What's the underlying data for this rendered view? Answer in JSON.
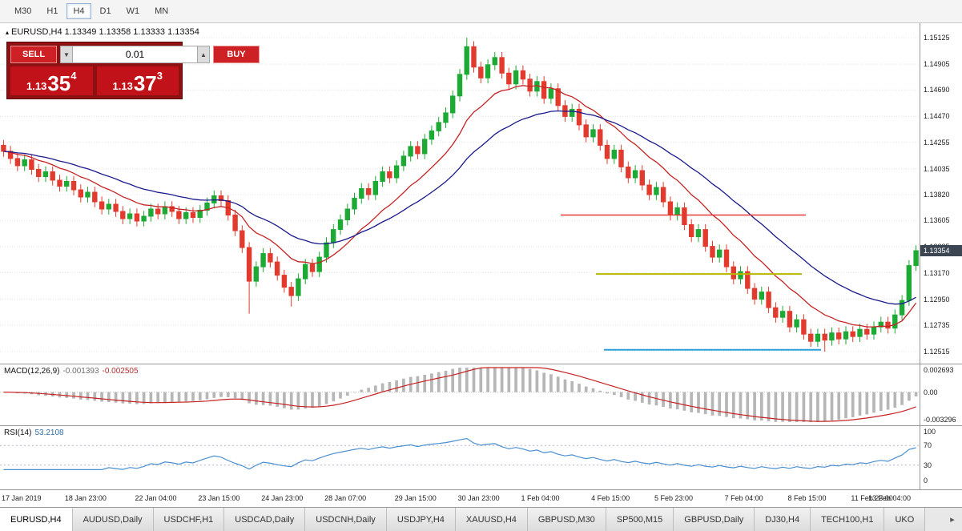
{
  "toolbar": {
    "timeframes": [
      "M30",
      "H1",
      "H4",
      "D1",
      "W1",
      "MN"
    ],
    "active_timeframe": "H4"
  },
  "chart": {
    "marker": "▴",
    "symbol_line": "EURUSD,H4  1.13349 1.13358 1.13333 1.13354"
  },
  "trade_widget": {
    "sell_label": "SELL",
    "buy_label": "BUY",
    "volume": "0.01",
    "volume_down_icon": "▼",
    "volume_up_icon": "▲",
    "sell_price": {
      "prefix": "1.13",
      "big": "35",
      "sup": "4"
    },
    "buy_price": {
      "prefix": "1.13",
      "big": "37",
      "sup": "3"
    }
  },
  "price_axis": {
    "labels": [
      "1.15125",
      "1.14905",
      "1.14690",
      "1.14470",
      "1.14255",
      "1.14035",
      "1.13820",
      "1.13605",
      "1.13385",
      "1.13170",
      "1.12950",
      "1.12735",
      "1.12515"
    ],
    "current_price": "1.13354",
    "scale_min": 1.12415,
    "scale_max": 1.15245
  },
  "chart_data": {
    "type": "candlestick",
    "symbol": "EURUSD",
    "timeframe": "H4",
    "ohlc_display": {
      "open": "1.13349",
      "high": "1.13358",
      "low": "1.13333",
      "close": "1.13354"
    },
    "first_open": 1.1423,
    "default_wick": 0.00045,
    "candle_up": "#1daa34",
    "candle_down": "#e23b2e",
    "closes": [
      1.1418,
      1.1412,
      1.1406,
      1.1411,
      1.1403,
      1.1397,
      1.1401,
      1.1394,
      1.1389,
      1.1393,
      1.1386,
      1.138,
      1.1384,
      1.1376,
      1.137,
      1.1374,
      1.1368,
      1.1362,
      1.1366,
      1.136,
      1.1364,
      1.137,
      1.1366,
      1.1372,
      1.1368,
      1.1362,
      1.1367,
      1.1363,
      1.1369,
      1.1375,
      1.1381,
      1.1377,
      1.1365,
      1.1352,
      1.1338,
      1.131,
      1.1322,
      1.1333,
      1.1326,
      1.1315,
      1.1305,
      1.1298,
      1.1312,
      1.1324,
      1.1318,
      1.133,
      1.1342,
      1.1353,
      1.1361,
      1.137,
      1.1379,
      1.1387,
      1.1382,
      1.1393,
      1.1401,
      1.1396,
      1.1406,
      1.1414,
      1.1422,
      1.1416,
      1.1428,
      1.1435,
      1.1442,
      1.145,
      1.1464,
      1.1482,
      1.1505,
      1.1488,
      1.1479,
      1.149,
      1.1496,
      1.1483,
      1.1474,
      1.1485,
      1.1478,
      1.1468,
      1.1476,
      1.1462,
      1.147,
      1.1456,
      1.1447,
      1.1453,
      1.144,
      1.143,
      1.1436,
      1.1423,
      1.1412,
      1.1419,
      1.1405,
      1.1396,
      1.1402,
      1.139,
      1.1382,
      1.1388,
      1.1376,
      1.1365,
      1.1371,
      1.1357,
      1.1347,
      1.1353,
      1.1339,
      1.133,
      1.1336,
      1.1322,
      1.1312,
      1.1318,
      1.1304,
      1.1295,
      1.1301,
      1.1288,
      1.128,
      1.1285,
      1.1272,
      1.1278,
      1.1266,
      1.126,
      1.1266,
      1.1261,
      1.1267,
      1.1262,
      1.1268,
      1.1264,
      1.127,
      1.1266,
      1.1272,
      1.1276,
      1.1271,
      1.1282,
      1.1294,
      1.1323,
      1.13354
    ],
    "wick_overrides": {
      "35": {
        "low": 1.1283
      },
      "41": {
        "low": 1.1289
      },
      "66": {
        "high": 1.15125
      },
      "117": {
        "low": 1.12515
      }
    },
    "overlays": {
      "ma_fast": {
        "type": "EMA",
        "period": 12,
        "color": "#c62222"
      },
      "ma_slow": {
        "type": "EMA",
        "period": 26,
        "color": "#1a1a8c"
      }
    },
    "hlines": [
      {
        "price": 1.1365,
        "from": 0.61,
        "to": 0.876,
        "color": "#e53935",
        "width": 1.4
      },
      {
        "price": 1.1316,
        "from": 0.648,
        "to": 0.872,
        "color": "#b5b800",
        "width": 2
      },
      {
        "price": 1.1253,
        "from": 0.657,
        "to": 0.893,
        "color": "#2a9fd8",
        "width": 2
      }
    ],
    "time_labels": [
      "17 Jan 2019",
      "18 Jan 23:00",
      "22 Jan 04:00",
      "23 Jan 15:00",
      "24 Jan 23:00",
      "28 Jan 07:00",
      "29 Jan 15:00",
      "30 Jan 23:00",
      "1 Feb 04:00",
      "4 Feb 15:00",
      "5 Feb 23:00",
      "7 Feb 04:00",
      "8 Feb 15:00",
      "11 Feb 23:00",
      "13 Feb 04:00"
    ],
    "time_label_indices": [
      0,
      9,
      19,
      28,
      37,
      46,
      56,
      65,
      74,
      84,
      93,
      103,
      112,
      121,
      130
    ]
  },
  "macd": {
    "label": "MACD(12,26,9)",
    "value_main": "-0.001393",
    "value_signal": "-0.002505",
    "axis_max": "0.002693",
    "axis_zero": "0.00",
    "axis_min": "-0.003296",
    "axis_max_val": 0.002693,
    "axis_min_val": -0.003296,
    "params": {
      "fast": 12,
      "slow": 26,
      "signal": 9
    },
    "histogram_color": "#b6b6b6",
    "signal_color": "#c62222"
  },
  "rsi": {
    "label": "RSI(14)",
    "value": "53.2108",
    "period": 14,
    "axis_labels": [
      "100",
      "70",
      "30",
      "0"
    ],
    "levels": [
      70,
      30
    ],
    "line_color": "#4a8fd0"
  },
  "tabs": {
    "items": [
      "EURUSD,H4",
      "AUDUSD,Daily",
      "USDCHF,H1",
      "USDCAD,Daily",
      "USDCNH,Daily",
      "USDJPY,H4",
      "XAUUSD,H4",
      "GBPUSD,M30",
      "SP500,M15",
      "GBPUSD,Daily",
      "DJ30,H4",
      "TECH100,H1",
      "UKO"
    ],
    "active": "EURUSD,H4",
    "overflow_arrow": "▸"
  }
}
